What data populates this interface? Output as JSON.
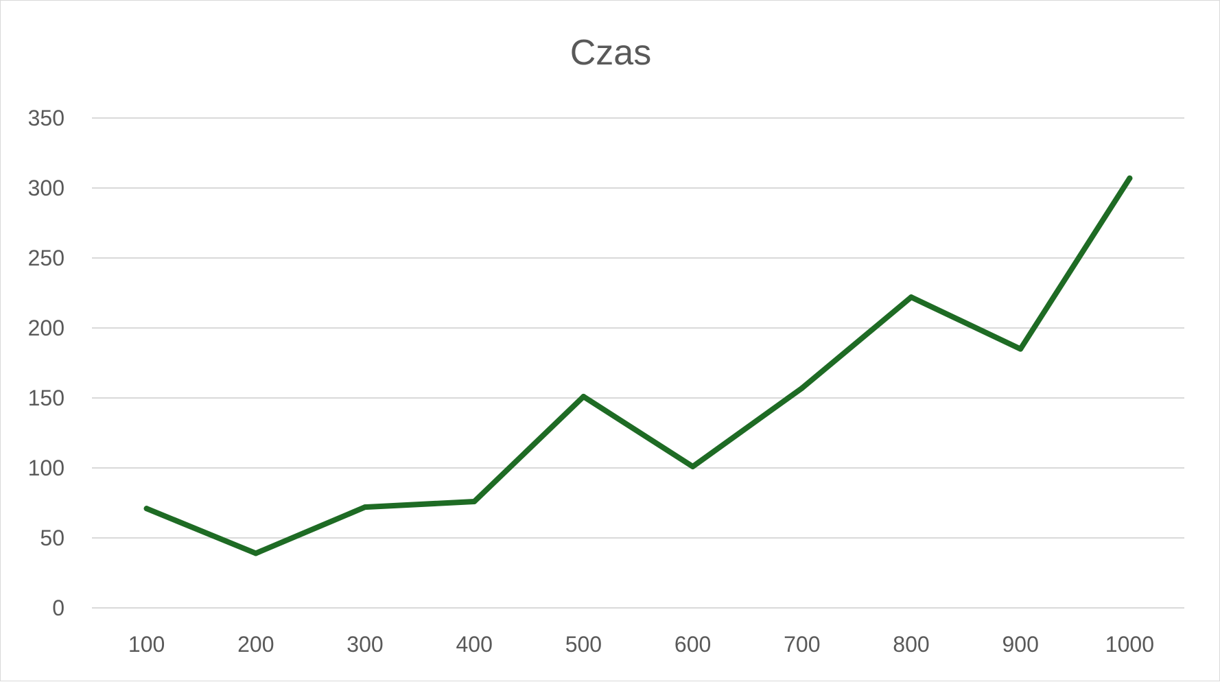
{
  "chart_data": {
    "type": "line",
    "title": "Czas",
    "xlabel": "",
    "ylabel": "",
    "categories": [
      "100",
      "200",
      "300",
      "400",
      "500",
      "600",
      "700",
      "800",
      "900",
      "1000"
    ],
    "series": [
      {
        "values": [
          71,
          39,
          72,
          76,
          151,
          101,
          157,
          222,
          185,
          307
        ]
      }
    ],
    "ylim": [
      0,
      350
    ],
    "yticks": [
      0,
      50,
      100,
      150,
      200,
      250,
      300,
      350
    ],
    "grid": true,
    "legend": "none",
    "colors": {
      "series": "#1e6b24",
      "grid": "#d9d9d9",
      "text": "#595959"
    }
  }
}
